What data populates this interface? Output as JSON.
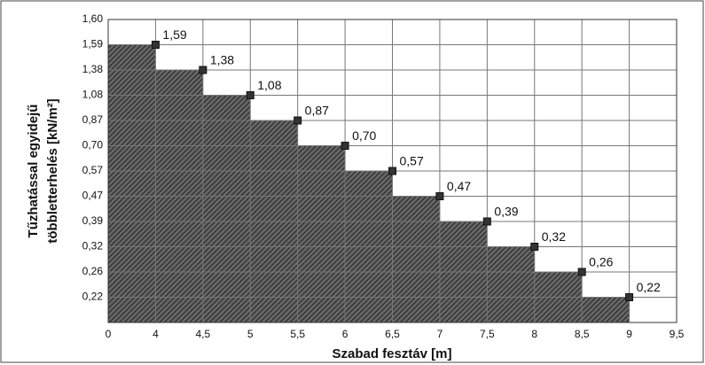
{
  "chart_data": {
    "type": "step",
    "xlabel": "Szabad fesztáv [m]",
    "ylabel": [
      "Tűzhatással egyidejű",
      "többletterhelés [kN/m²]"
    ],
    "x": [
      4,
      4.5,
      5,
      5.5,
      6,
      6.5,
      7,
      7.5,
      8,
      8.5,
      9
    ],
    "values": [
      1.59,
      1.38,
      1.08,
      0.87,
      0.7,
      0.57,
      0.47,
      0.39,
      0.32,
      0.26,
      0.22
    ],
    "value_labels": [
      "1,59",
      "1,38",
      "1,08",
      "0,87",
      "0,70",
      "0,57",
      "0,47",
      "0,39",
      "0,32",
      "0,26",
      "0,22"
    ],
    "xticks": [
      0,
      4,
      {
        "value": 4.5,
        "label": "4,5"
      },
      5,
      {
        "value": 5.5,
        "label": "5,5"
      },
      6,
      {
        "value": 6.5,
        "label": "6,5"
      },
      7,
      {
        "value": 7.5,
        "label": "7,5"
      },
      8,
      {
        "value": 8.5,
        "label": "8,5"
      },
      9,
      {
        "value": 9.5,
        "label": "9,5"
      }
    ],
    "yticks": [
      {
        "value": 0.22,
        "label": "0,22"
      },
      {
        "value": 0.26,
        "label": "0,26"
      },
      {
        "value": 0.32,
        "label": "0,32"
      },
      {
        "value": 0.39,
        "label": "0,39"
      },
      {
        "value": 0.47,
        "label": "0,47"
      },
      {
        "value": 0.57,
        "label": "0,57"
      },
      {
        "value": 0.7,
        "label": "0,70"
      },
      {
        "value": 0.87,
        "label": "0,87"
      },
      {
        "value": 1.08,
        "label": "1,08"
      },
      {
        "value": 1.38,
        "label": "1,38"
      },
      {
        "value": 1.59,
        "label": "1,59"
      },
      {
        "value": 1.6,
        "label": "1,60"
      }
    ],
    "color": "#555555",
    "grid": true
  }
}
